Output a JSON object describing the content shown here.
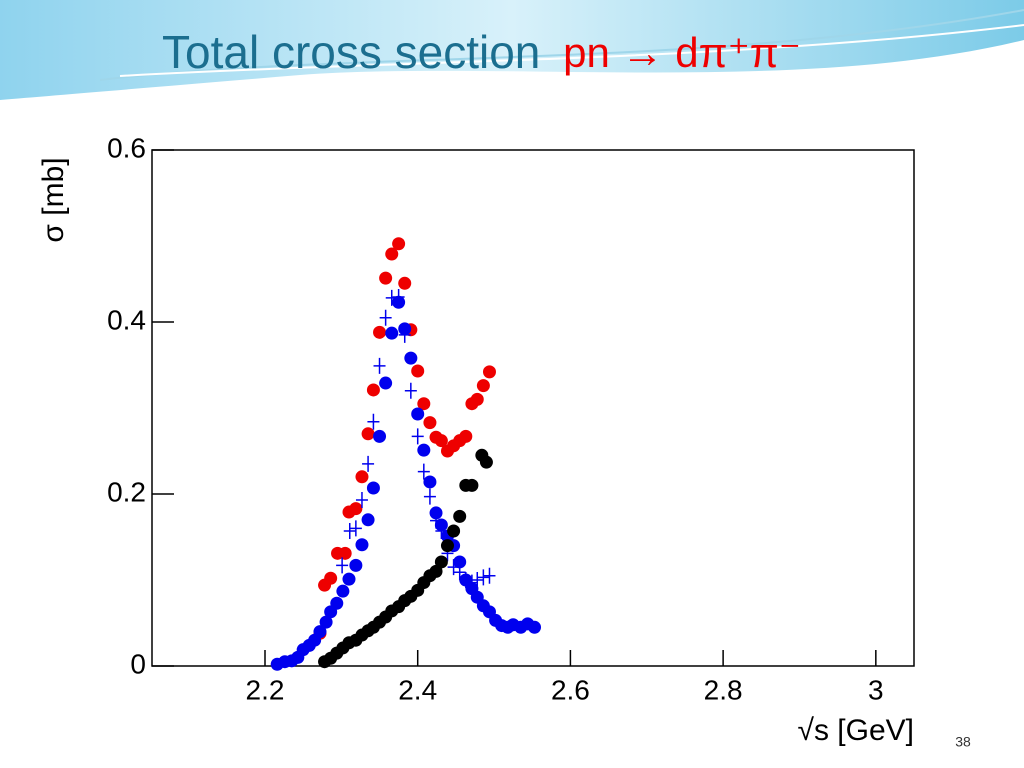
{
  "chart_data": {
    "type": "scatter",
    "title": "Total cross section",
    "title_reaction": "pn → dπ⁺π⁻",
    "y_label": "σ [mb]",
    "x_label": "√s [GeV]",
    "xlim": [
      2.052,
      3.05
    ],
    "ylim": [
      0,
      0.6
    ],
    "xticks": [
      2.2,
      2.4,
      2.6,
      2.8,
      3
    ],
    "yticks": [
      0,
      0.2,
      0.4,
      0.6
    ],
    "series": [
      {
        "color": "#ee0000",
        "marker": "circle",
        "x": [
          2.272,
          2.278,
          2.286,
          2.295,
          2.305,
          2.31,
          2.319,
          2.327,
          2.335,
          2.342,
          2.35,
          2.358,
          2.366,
          2.375,
          2.383,
          2.391,
          2.4,
          2.408,
          2.416,
          2.424,
          2.431,
          2.439,
          2.447,
          2.455,
          2.463,
          2.471,
          2.478,
          2.486,
          2.494
        ],
        "values": [
          0.038,
          0.094,
          0.102,
          0.131,
          0.131,
          0.179,
          0.183,
          0.22,
          0.27,
          0.321,
          0.388,
          0.451,
          0.479,
          0.491,
          0.445,
          0.391,
          0.343,
          0.305,
          0.283,
          0.266,
          0.262,
          0.25,
          0.256,
          0.262,
          0.267,
          0.305,
          0.31,
          0.326,
          0.342
        ]
      },
      {
        "color": "#0000ee",
        "marker": "circle",
        "x": [
          2.216,
          2.226,
          2.235,
          2.243,
          2.25,
          2.258,
          2.265,
          2.272,
          2.28,
          2.286,
          2.294,
          2.302,
          2.31,
          2.319,
          2.327,
          2.335,
          2.342,
          2.35,
          2.358,
          2.366,
          2.375,
          2.383,
          2.391,
          2.4,
          2.408,
          2.416,
          2.424,
          2.431,
          2.439,
          2.447,
          2.455,
          2.463,
          2.471,
          2.478,
          2.486,
          2.494,
          2.502,
          2.51,
          2.518,
          2.525,
          2.535,
          2.544,
          2.553
        ],
        "values": [
          0.002,
          0.005,
          0.006,
          0.01,
          0.019,
          0.024,
          0.03,
          0.04,
          0.051,
          0.063,
          0.073,
          0.087,
          0.101,
          0.117,
          0.141,
          0.17,
          0.207,
          0.267,
          0.329,
          0.387,
          0.423,
          0.392,
          0.358,
          0.293,
          0.251,
          0.214,
          0.178,
          0.164,
          0.151,
          0.14,
          0.121,
          0.1,
          0.09,
          0.08,
          0.07,
          0.063,
          0.053,
          0.047,
          0.045,
          0.048,
          0.045,
          0.049,
          0.045
        ]
      },
      {
        "color": "#0000ee",
        "marker": "cross",
        "x": [
          2.301,
          2.311,
          2.319,
          2.327,
          2.335,
          2.342,
          2.35,
          2.358,
          2.366,
          2.375,
          2.383,
          2.391,
          2.4,
          2.408,
          2.416,
          2.424,
          2.431,
          2.439,
          2.447,
          2.455,
          2.463,
          2.471,
          2.478,
          2.486,
          2.494
        ],
        "values": [
          0.117,
          0.157,
          0.16,
          0.193,
          0.235,
          0.284,
          0.349,
          0.405,
          0.428,
          0.429,
          0.385,
          0.32,
          0.267,
          0.226,
          0.197,
          0.169,
          0.157,
          0.131,
          0.115,
          0.109,
          0.1,
          0.097,
          0.1,
          0.103,
          0.105
        ]
      },
      {
        "color": "#000000",
        "marker": "circle",
        "x": [
          2.278,
          2.286,
          2.294,
          2.302,
          2.31,
          2.319,
          2.327,
          2.335,
          2.342,
          2.35,
          2.358,
          2.366,
          2.375,
          2.383,
          2.391,
          2.4,
          2.408,
          2.416,
          2.424,
          2.431,
          2.439,
          2.447,
          2.455,
          2.463,
          2.471,
          2.484,
          2.49
        ],
        "values": [
          0.005,
          0.009,
          0.015,
          0.021,
          0.027,
          0.03,
          0.036,
          0.041,
          0.045,
          0.051,
          0.057,
          0.064,
          0.069,
          0.076,
          0.081,
          0.088,
          0.097,
          0.105,
          0.11,
          0.121,
          0.14,
          0.157,
          0.174,
          0.21,
          0.21,
          0.245,
          0.237
        ]
      }
    ]
  },
  "slide_number": "38"
}
